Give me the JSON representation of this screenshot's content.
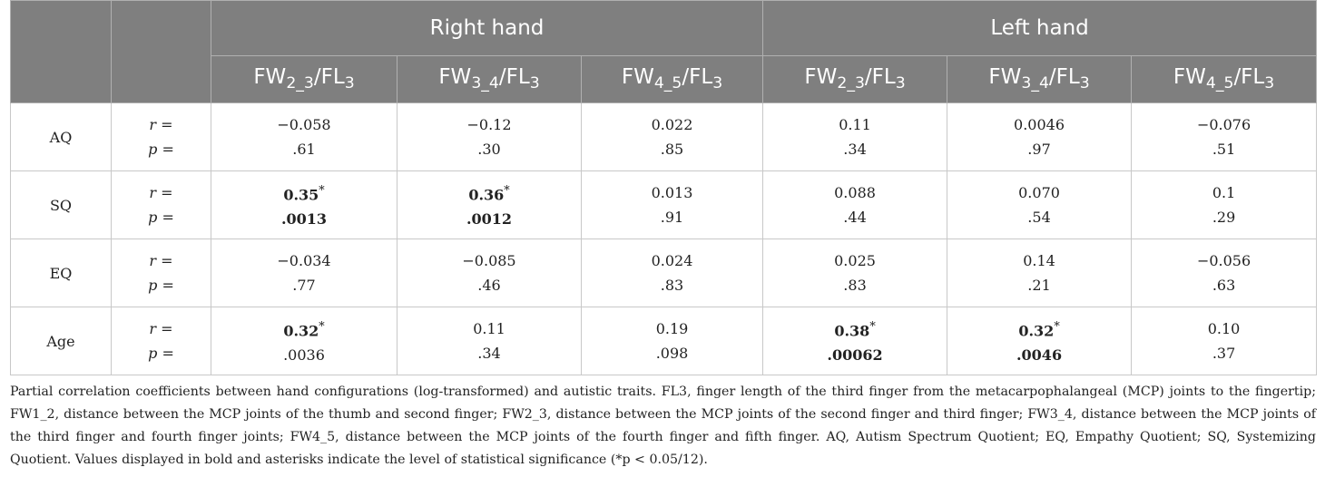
{
  "table": {
    "groups": [
      "Right hand",
      "Left hand"
    ],
    "columns": [
      {
        "base": "FW",
        "sub": "2_3",
        "over": "/FL",
        "over_sub": "3"
      },
      {
        "base": "FW",
        "sub": "3_4",
        "over": "/FL",
        "over_sub": "3"
      },
      {
        "base": "FW",
        "sub": "4_5",
        "over": "/FL",
        "over_sub": "3"
      },
      {
        "base": "FW",
        "sub": "2_3",
        "over": "/FL",
        "over_sub": "3"
      },
      {
        "base": "FW",
        "sub": "3_4",
        "over": "/FL",
        "over_sub": "3"
      },
      {
        "base": "FW",
        "sub": "4_5",
        "over": "/FL",
        "over_sub": "3"
      }
    ],
    "stat_labels": [
      "r =",
      "p ="
    ],
    "rows": [
      {
        "label": "AQ",
        "r": [
          "−0.058",
          "−0.12",
          "0.022",
          "0.11",
          "0.0046",
          "−0.076"
        ],
        "p": [
          ".61",
          ".30",
          ".85",
          ".34",
          ".97",
          ".51"
        ]
      },
      {
        "label": "SQ",
        "r": [
          {
            "v": "0.35",
            "star": "*",
            "bold": true
          },
          {
            "v": "0.36",
            "star": "*",
            "bold": true
          },
          "0.013",
          "0.088",
          "0.070",
          "0.1"
        ],
        "p": [
          {
            "v": ".0013",
            "bold": true
          },
          {
            "v": ".0012",
            "bold": true
          },
          ".91",
          ".44",
          ".54",
          ".29"
        ]
      },
      {
        "label": "EQ",
        "r": [
          "−0.034",
          "−0.085",
          "0.024",
          "0.025",
          "0.14",
          "−0.056"
        ],
        "p": [
          ".77",
          ".46",
          ".83",
          ".83",
          ".21",
          ".63"
        ]
      },
      {
        "label": "Age",
        "r": [
          {
            "v": "0.32",
            "star": "*",
            "bold": true
          },
          "0.11",
          "0.19",
          {
            "v": "0.38",
            "star": "*",
            "bold": true
          },
          {
            "v": "0.32",
            "star": "*",
            "bold": true
          },
          "0.10"
        ],
        "p": [
          ".0036",
          ".34",
          ".098",
          {
            "v": ".00062",
            "bold": true
          },
          {
            "v": ".0046",
            "bold": true
          },
          ".37"
        ]
      }
    ],
    "footnote": "Partial correlation coefficients between hand configurations (log-transformed) and autistic traits. FL3, finger length of the third finger from the metacarpophalangeal (MCP) joints to the fingertip; FW1_2, distance between the MCP joints of the thumb and second finger; FW2_3, distance between the MCP joints of the second finger and third finger; FW3_4, distance between the MCP joints of the third finger and fourth finger joints; FW4_5, distance between the MCP joints of the fourth finger and fifth finger. AQ, Autism Spectrum Quotient; EQ, Empathy Quotient; SQ, Systemizing Quotient. Values displayed in bold and asterisks indicate the level of statistical significance (*p < 0.05/12)."
  }
}
